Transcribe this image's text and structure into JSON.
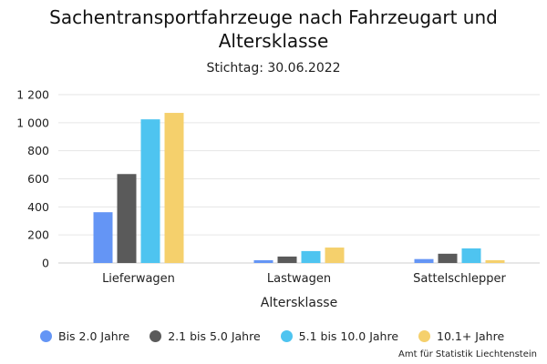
{
  "title": "Sachentransportfahrzeuge nach Fahrzeugart und Altersklasse",
  "subtitle": "Stichtag: 30.06.2022",
  "credit": "Amt für Statistik Liechtenstein",
  "chart_data": {
    "type": "bar",
    "title": "Sachentransportfahrzeuge nach Fahrzeugart und Altersklasse",
    "subtitle": "Stichtag: 30.06.2022",
    "xlabel": "Altersklasse",
    "ylabel": "",
    "ylim": [
      0,
      1200
    ],
    "yticks": [
      "0",
      "200",
      "400",
      "600",
      "800",
      "1 000",
      "1 200"
    ],
    "grid": true,
    "legend_position": "bottom",
    "categories": [
      "Lieferwagen",
      "Lastwagen",
      "Sattelschlepper"
    ],
    "series": [
      {
        "name": "Bis 2.0 Jahre",
        "color": "#6495f5",
        "values": [
          362,
          20,
          28
        ]
      },
      {
        "name": "2.1 bis 5.0 Jahre",
        "color": "#5a5a5a",
        "values": [
          634,
          46,
          66
        ]
      },
      {
        "name": "5.1 bis 10.0 Jahre",
        "color": "#4ec4f0",
        "values": [
          1024,
          85,
          104
        ]
      },
      {
        "name": "10.1+ Jahre",
        "color": "#f5d06c",
        "values": [
          1070,
          110,
          20
        ]
      }
    ]
  }
}
